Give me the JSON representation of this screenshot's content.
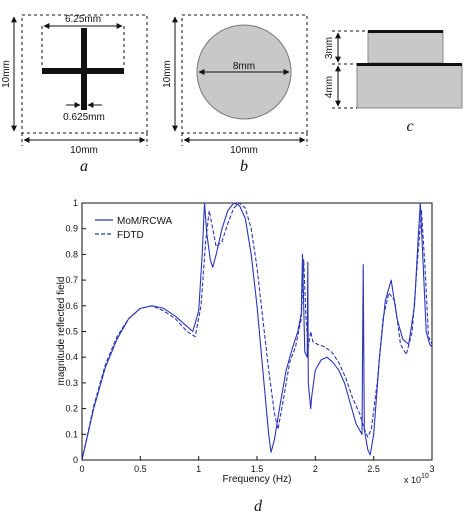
{
  "panels": {
    "a": {
      "caption": "a",
      "cross_width_label": "6.25mm",
      "bar_width_label": "0.625mm",
      "side_label": "10mm",
      "bottom_label": "10mm"
    },
    "b": {
      "caption": "b",
      "diameter_label": "8mm",
      "side_label": "10mm",
      "bottom_label": "10mm"
    },
    "c": {
      "caption": "c",
      "upper_label": "3mm",
      "lower_label": "4mm"
    },
    "d": {
      "caption": "d"
    }
  },
  "chart_data": {
    "type": "line",
    "title": "",
    "xlabel": "Frequency (Hz)",
    "ylabel": "magnitude reflected field",
    "x_multiplier": "x 10",
    "x_multiplier_exp": "10",
    "xlim": [
      0,
      3
    ],
    "ylim": [
      0,
      1
    ],
    "xticks": [
      "0",
      "0.5",
      "1",
      "1.5",
      "2",
      "2.5",
      "3"
    ],
    "yticks": [
      "0",
      "0.1",
      "0.2",
      "0.3",
      "0.4",
      "0.5",
      "0.6",
      "0.7",
      "0.8",
      "0.9",
      "1"
    ],
    "legend_position": "top-left",
    "series": [
      {
        "name": "MoM/RCWA",
        "style": "solid",
        "color": "#2b35b8",
        "points": [
          [
            0,
            0
          ],
          [
            0.1,
            0.2
          ],
          [
            0.2,
            0.36
          ],
          [
            0.3,
            0.47
          ],
          [
            0.4,
            0.55
          ],
          [
            0.5,
            0.59
          ],
          [
            0.6,
            0.6
          ],
          [
            0.7,
            0.59
          ],
          [
            0.8,
            0.56
          ],
          [
            0.9,
            0.52
          ],
          [
            0.95,
            0.5
          ],
          [
            1.0,
            0.58
          ],
          [
            1.03,
            0.8
          ],
          [
            1.05,
            1.0
          ],
          [
            1.07,
            0.88
          ],
          [
            1.1,
            0.78
          ],
          [
            1.12,
            0.75
          ],
          [
            1.15,
            0.8
          ],
          [
            1.2,
            0.9
          ],
          [
            1.25,
            0.97
          ],
          [
            1.3,
            1.0
          ],
          [
            1.35,
            0.99
          ],
          [
            1.4,
            0.94
          ],
          [
            1.45,
            0.8
          ],
          [
            1.5,
            0.6
          ],
          [
            1.55,
            0.35
          ],
          [
            1.6,
            0.1
          ],
          [
            1.62,
            0.03
          ],
          [
            1.65,
            0.08
          ],
          [
            1.7,
            0.22
          ],
          [
            1.75,
            0.35
          ],
          [
            1.8,
            0.43
          ],
          [
            1.85,
            0.5
          ],
          [
            1.88,
            0.57
          ],
          [
            1.89,
            0.8
          ],
          [
            1.9,
            0.6
          ],
          [
            1.91,
            0.42
          ],
          [
            1.93,
            0.4
          ],
          [
            1.935,
            0.77
          ],
          [
            1.94,
            0.3
          ],
          [
            1.95,
            0.25
          ],
          [
            1.96,
            0.2
          ],
          [
            1.97,
            0.25
          ],
          [
            2.0,
            0.35
          ],
          [
            2.05,
            0.39
          ],
          [
            2.1,
            0.4
          ],
          [
            2.15,
            0.38
          ],
          [
            2.2,
            0.35
          ],
          [
            2.25,
            0.3
          ],
          [
            2.3,
            0.22
          ],
          [
            2.35,
            0.14
          ],
          [
            2.4,
            0.1
          ],
          [
            2.41,
            0.76
          ],
          [
            2.42,
            0.12
          ],
          [
            2.45,
            0.04
          ],
          [
            2.47,
            0.02
          ],
          [
            2.5,
            0.1
          ],
          [
            2.55,
            0.4
          ],
          [
            2.6,
            0.62
          ],
          [
            2.65,
            0.7
          ],
          [
            2.7,
            0.55
          ],
          [
            2.75,
            0.47
          ],
          [
            2.8,
            0.45
          ],
          [
            2.85,
            0.6
          ],
          [
            2.88,
            0.85
          ],
          [
            2.9,
            1.0
          ],
          [
            2.92,
            0.8
          ],
          [
            2.95,
            0.5
          ],
          [
            2.98,
            0.45
          ],
          [
            3.0,
            0.44
          ]
        ]
      },
      {
        "name": "FDTD",
        "style": "dashed",
        "color": "#2b35b8",
        "points": [
          [
            0,
            0
          ],
          [
            0.1,
            0.21
          ],
          [
            0.2,
            0.37
          ],
          [
            0.3,
            0.48
          ],
          [
            0.4,
            0.55
          ],
          [
            0.5,
            0.59
          ],
          [
            0.6,
            0.6
          ],
          [
            0.7,
            0.58
          ],
          [
            0.8,
            0.55
          ],
          [
            0.9,
            0.5
          ],
          [
            0.97,
            0.48
          ],
          [
            1.02,
            0.6
          ],
          [
            1.06,
            0.85
          ],
          [
            1.09,
            0.97
          ],
          [
            1.12,
            0.9
          ],
          [
            1.15,
            0.83
          ],
          [
            1.2,
            0.85
          ],
          [
            1.25,
            0.92
          ],
          [
            1.3,
            0.98
          ],
          [
            1.35,
            1.0
          ],
          [
            1.4,
            0.98
          ],
          [
            1.45,
            0.9
          ],
          [
            1.5,
            0.75
          ],
          [
            1.55,
            0.55
          ],
          [
            1.6,
            0.35
          ],
          [
            1.65,
            0.18
          ],
          [
            1.68,
            0.12
          ],
          [
            1.72,
            0.22
          ],
          [
            1.78,
            0.38
          ],
          [
            1.83,
            0.44
          ],
          [
            1.88,
            0.55
          ],
          [
            1.9,
            0.78
          ],
          [
            1.92,
            0.55
          ],
          [
            1.94,
            0.44
          ],
          [
            1.96,
            0.5
          ],
          [
            1.98,
            0.46
          ],
          [
            2.02,
            0.45
          ],
          [
            2.08,
            0.44
          ],
          [
            2.14,
            0.42
          ],
          [
            2.2,
            0.38
          ],
          [
            2.26,
            0.32
          ],
          [
            2.32,
            0.24
          ],
          [
            2.38,
            0.18
          ],
          [
            2.42,
            0.12
          ],
          [
            2.45,
            0.09
          ],
          [
            2.48,
            0.12
          ],
          [
            2.53,
            0.3
          ],
          [
            2.58,
            0.55
          ],
          [
            2.63,
            0.65
          ],
          [
            2.68,
            0.62
          ],
          [
            2.73,
            0.45
          ],
          [
            2.78,
            0.41
          ],
          [
            2.83,
            0.5
          ],
          [
            2.88,
            0.8
          ],
          [
            2.91,
            0.97
          ],
          [
            2.94,
            0.75
          ],
          [
            2.97,
            0.48
          ],
          [
            3.0,
            0.45
          ]
        ]
      }
    ]
  }
}
